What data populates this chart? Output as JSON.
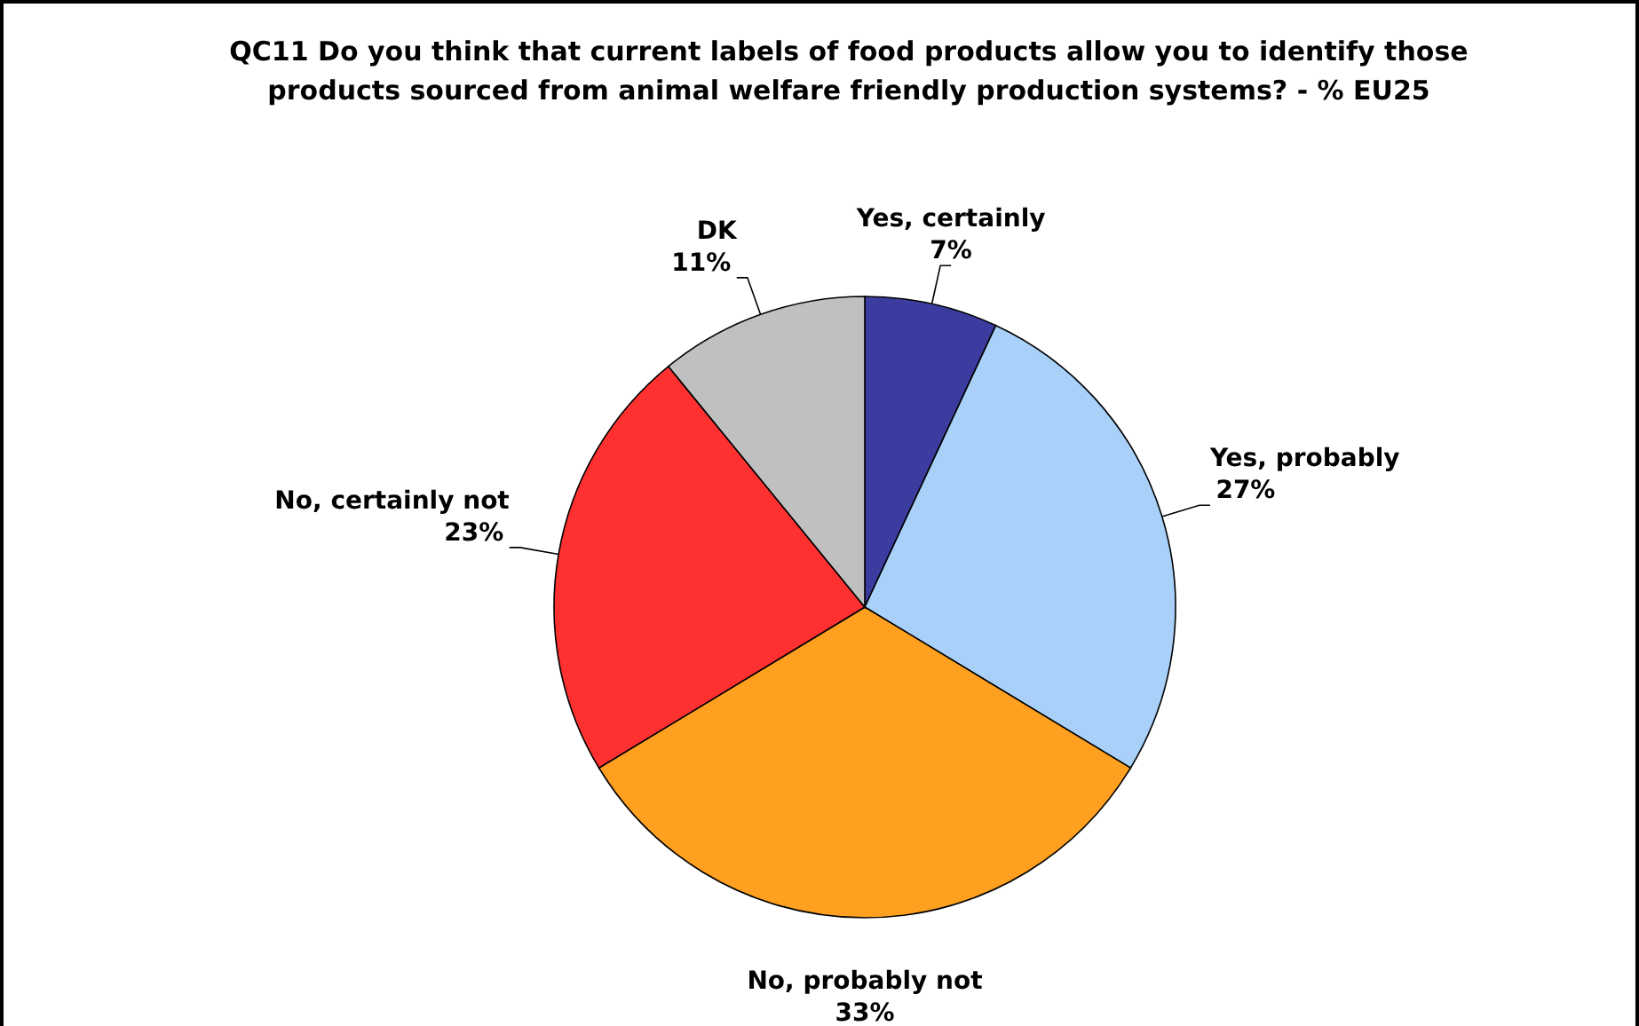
{
  "chart_data": {
    "type": "pie",
    "title": "QC11 Do you think that current labels of food products allow you to identify those products sourced from animal welfare friendly production systems? - % EU25",
    "categories": [
      "Yes, certainly",
      "Yes, probably",
      "No, probably not",
      "No, certainly not",
      "DK"
    ],
    "values": [
      7,
      27,
      33,
      23,
      11
    ],
    "colors": [
      "#3c3ca0",
      "#a8d0f8",
      "#ffa020",
      "#ff3030",
      "#c0c0c0"
    ],
    "value_labels": [
      "7%",
      "27%",
      "33%",
      "23%",
      "11%"
    ],
    "legend": false
  }
}
